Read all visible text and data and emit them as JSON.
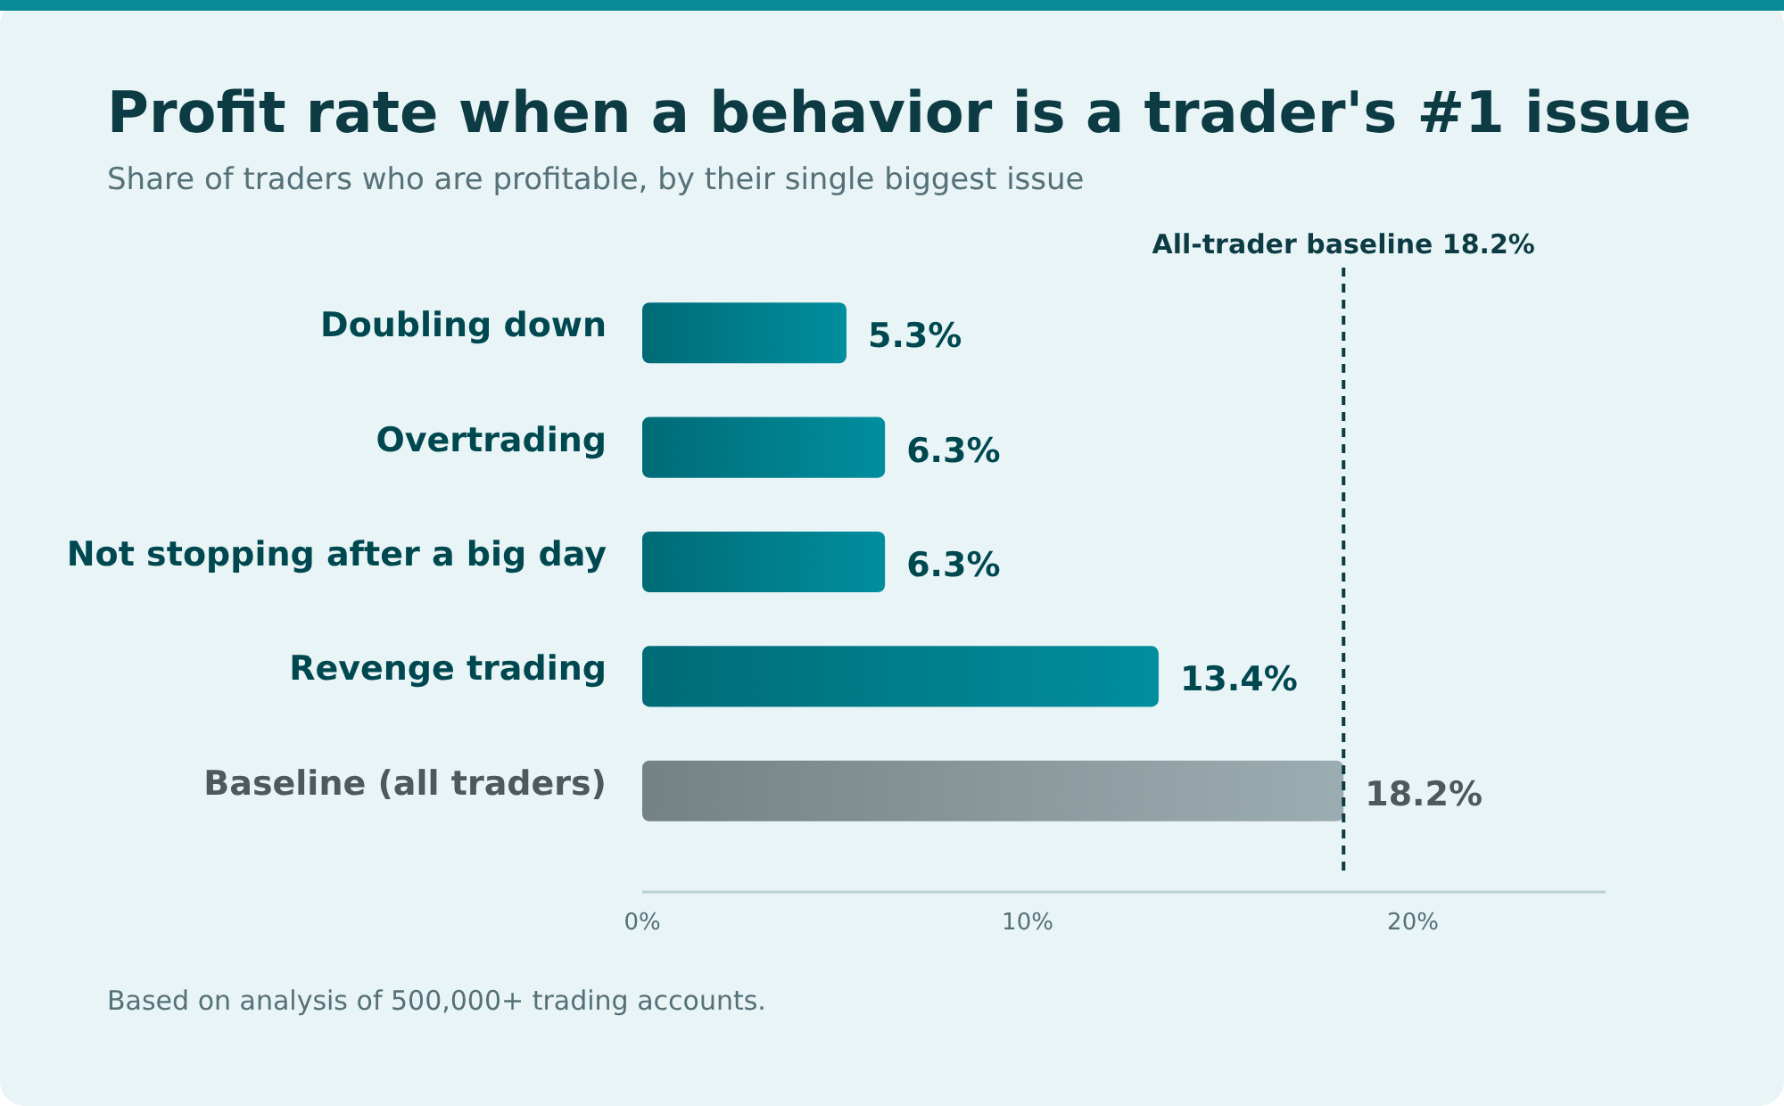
{
  "chart_data": {
    "type": "bar",
    "orientation": "horizontal",
    "title": "Profit rate when a behavior is a trader's #1 issue",
    "subtitle": "Share of traders who are profitable, by their single biggest issue",
    "categories": [
      "Doubling down",
      "Overtrading",
      "Not stopping after a big day",
      "Revenge trading",
      "Baseline (all traders)"
    ],
    "values": [
      5.3,
      6.3,
      6.3,
      13.4,
      18.2
    ],
    "colors": [
      "#00808e",
      "#00808e",
      "#00808e",
      "#00808e",
      "#8c9b9f"
    ],
    "value_labels": [
      "5.3%",
      "6.3%",
      "6.3%",
      "13.4%",
      "18.2%"
    ],
    "xlim": [
      0,
      25
    ],
    "xticks": [
      {
        "value": 0,
        "label": "0%"
      },
      {
        "value": 10,
        "label": "10%"
      },
      {
        "value": 20,
        "label": "20%"
      }
    ],
    "ref_lines": [
      {
        "axis": "x",
        "value": 18.2,
        "label": "All-trader baseline 18.2%",
        "color": "#0d3b44",
        "line_style": "dashed"
      }
    ],
    "grid": false,
    "annotations": [
      "Based on analysis of 500,000+ trading accounts."
    ]
  }
}
